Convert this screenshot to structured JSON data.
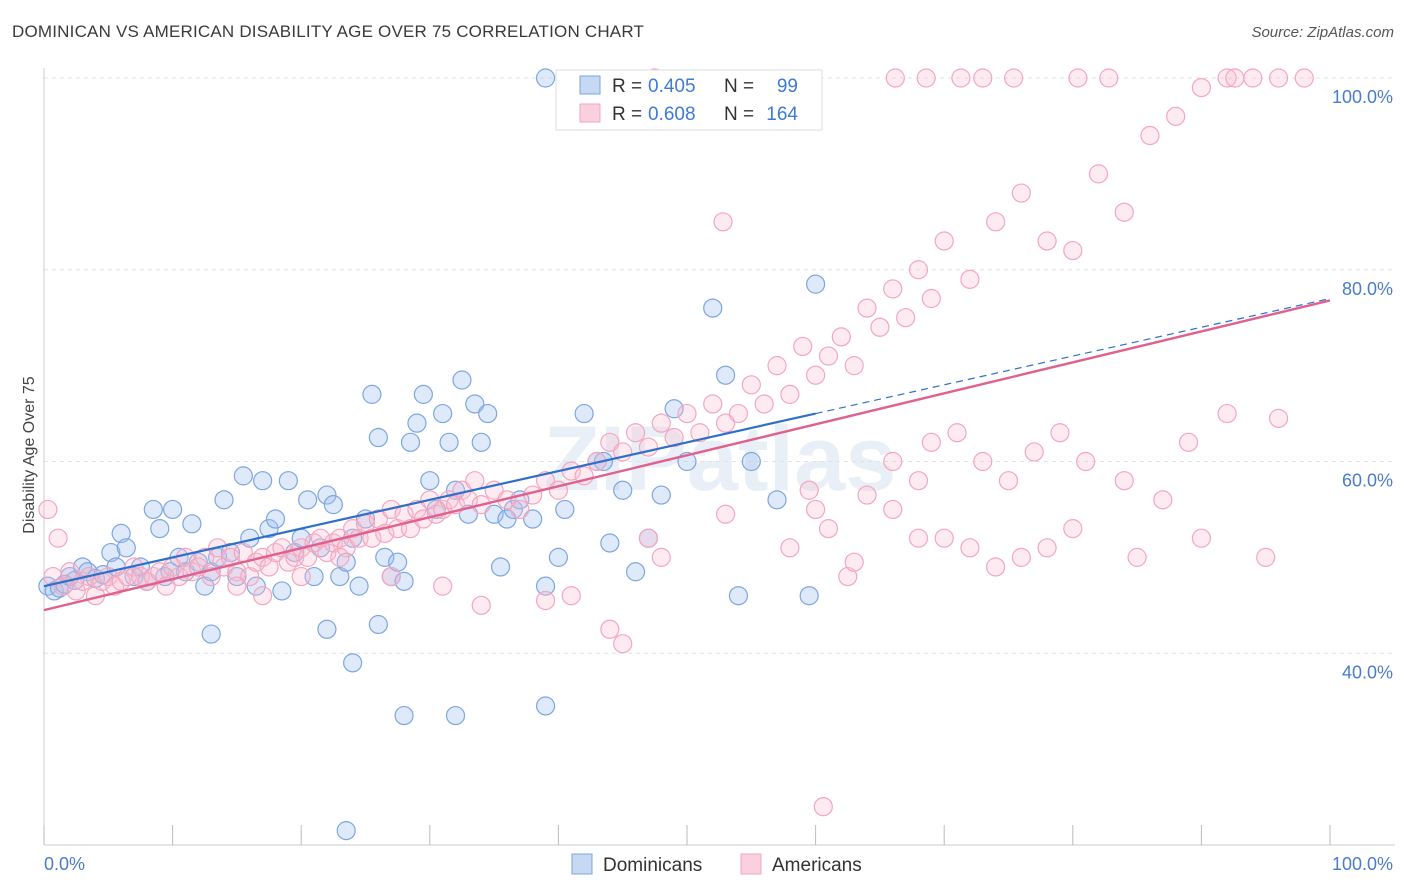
{
  "title": "DOMINICAN VS AMERICAN DISABILITY AGE OVER 75 CORRELATION CHART",
  "source": "Source: ZipAtlas.com",
  "watermark": "ZIPatlas",
  "chart_data": {
    "type": "scatter",
    "ylabel": "Disability Age Over 75",
    "xlim": [
      0,
      100
    ],
    "ylim": [
      20,
      100
    ],
    "x_tick_labels": [
      "0.0%",
      "100.0%"
    ],
    "y_ticks": [
      40,
      60,
      80,
      100
    ],
    "y_tick_labels": [
      "40.0%",
      "60.0%",
      "80.0%",
      "100.0%"
    ],
    "grid": true,
    "legend": {
      "position": "top-center",
      "r_label": "R =",
      "n_label": "N =",
      "entries": [
        {
          "r": "0.405",
          "n": "99"
        },
        {
          "r": "0.608",
          "n": "164"
        }
      ]
    },
    "series": [
      {
        "name": "Dominicans",
        "color": "#7ea6e0",
        "line_color": "#2f6fc9",
        "trend": {
          "x0": 0,
          "y0": 47,
          "x1": 60,
          "y1": 65,
          "dash_to_x": 100,
          "dash_to_y": 77
        },
        "points": [
          [
            0.3,
            47
          ],
          [
            0.8,
            46.5
          ],
          [
            1.2,
            46.8
          ],
          [
            1.6,
            47.2
          ],
          [
            2,
            48
          ],
          [
            2.4,
            47.6
          ],
          [
            3,
            49
          ],
          [
            3.4,
            48.5
          ],
          [
            4,
            47.8
          ],
          [
            4.6,
            48.2
          ],
          [
            5.2,
            50.5
          ],
          [
            5.6,
            49
          ],
          [
            6,
            52.5
          ],
          [
            6.4,
            51
          ],
          [
            7,
            48
          ],
          [
            7.5,
            49
          ],
          [
            8,
            47.5
          ],
          [
            8.5,
            55
          ],
          [
            9,
            53
          ],
          [
            9.4,
            48
          ],
          [
            9.8,
            48.5
          ],
          [
            10,
            55
          ],
          [
            10.5,
            50
          ],
          [
            11,
            48.5
          ],
          [
            11.5,
            53.5
          ],
          [
            12,
            49.5
          ],
          [
            12.5,
            47
          ],
          [
            13,
            48.5
          ],
          [
            13.5,
            50
          ],
          [
            14,
            56
          ],
          [
            14.5,
            50.5
          ],
          [
            15,
            48
          ],
          [
            15.5,
            58.5
          ],
          [
            16,
            52
          ],
          [
            16.5,
            47
          ],
          [
            17,
            58
          ],
          [
            17.5,
            53
          ],
          [
            18,
            54
          ],
          [
            18.5,
            46.5
          ],
          [
            19,
            58
          ],
          [
            19.5,
            50.5
          ],
          [
            20,
            52
          ],
          [
            20.5,
            56
          ],
          [
            21,
            48
          ],
          [
            21.5,
            51
          ],
          [
            22,
            56.5
          ],
          [
            22.5,
            55.5
          ],
          [
            23,
            48
          ],
          [
            23.5,
            49.5
          ],
          [
            24,
            52
          ],
          [
            24.5,
            47
          ],
          [
            25,
            54
          ],
          [
            25.5,
            67
          ],
          [
            26,
            62.5
          ],
          [
            26.5,
            50
          ],
          [
            27,
            48
          ],
          [
            27.5,
            49.5
          ],
          [
            28,
            47.5
          ],
          [
            28.5,
            62
          ],
          [
            29,
            64
          ],
          [
            29.5,
            67
          ],
          [
            30,
            58
          ],
          [
            30.5,
            55
          ],
          [
            31,
            65
          ],
          [
            31.5,
            62
          ],
          [
            32,
            57
          ],
          [
            32.5,
            68.5
          ],
          [
            33,
            54.5
          ],
          [
            33.5,
            66
          ],
          [
            34,
            62
          ],
          [
            34.5,
            65
          ],
          [
            35,
            54.5
          ],
          [
            35.5,
            49
          ],
          [
            36,
            54
          ],
          [
            36.5,
            55
          ],
          [
            37,
            56
          ],
          [
            38,
            54
          ],
          [
            39,
            47
          ],
          [
            40,
            50
          ],
          [
            40.5,
            55
          ],
          [
            42,
            65
          ],
          [
            43,
            60
          ],
          [
            43.5,
            60
          ],
          [
            44,
            51.5
          ],
          [
            45,
            57
          ],
          [
            46,
            48.5
          ],
          [
            47,
            52
          ],
          [
            48,
            56.5
          ],
          [
            49,
            65.5
          ],
          [
            50,
            60
          ],
          [
            52,
            76
          ],
          [
            53,
            69
          ],
          [
            54,
            46
          ],
          [
            55,
            60
          ],
          [
            57,
            56
          ],
          [
            59.5,
            46
          ],
          [
            60,
            78.5
          ],
          [
            13,
            42
          ],
          [
            22,
            42.5
          ],
          [
            24,
            39
          ],
          [
            26,
            43
          ],
          [
            28,
            33.5
          ],
          [
            32,
            33.5
          ],
          [
            39,
            34.5
          ],
          [
            23.5,
            21.5
          ],
          [
            39,
            100
          ]
        ]
      },
      {
        "name": "Americans",
        "color": "#f4a6bf",
        "line_color": "#e0608e",
        "trend": {
          "x0": 0,
          "y0": 44.5,
          "x1": 100,
          "y1": 76.8
        },
        "points": [
          [
            0.3,
            55
          ],
          [
            0.7,
            48
          ],
          [
            1.1,
            52
          ],
          [
            1.5,
            47
          ],
          [
            2,
            48.5
          ],
          [
            2.5,
            46.5
          ],
          [
            3,
            47.5
          ],
          [
            3.5,
            48
          ],
          [
            4,
            46
          ],
          [
            4.5,
            47.5
          ],
          [
            5,
            48
          ],
          [
            5.5,
            47
          ],
          [
            6,
            47.5
          ],
          [
            6.5,
            48
          ],
          [
            7,
            49
          ],
          [
            7.5,
            48
          ],
          [
            8,
            47.5
          ],
          [
            8.5,
            48
          ],
          [
            9,
            48.5
          ],
          [
            9.5,
            47
          ],
          [
            10,
            49
          ],
          [
            10.5,
            48
          ],
          [
            11,
            50
          ],
          [
            11.5,
            48.5
          ],
          [
            12,
            49
          ],
          [
            12.5,
            50
          ],
          [
            13,
            48
          ],
          [
            13.5,
            51
          ],
          [
            14,
            49
          ],
          [
            14.5,
            50
          ],
          [
            15,
            48.5
          ],
          [
            15.5,
            50.5
          ],
          [
            16,
            48
          ],
          [
            16.5,
            49.5
          ],
          [
            17,
            50
          ],
          [
            17.5,
            49
          ],
          [
            18,
            50.5
          ],
          [
            18.5,
            51
          ],
          [
            19,
            49.5
          ],
          [
            19.5,
            50
          ],
          [
            20,
            51
          ],
          [
            20.5,
            50
          ],
          [
            21,
            51.5
          ],
          [
            21.5,
            52
          ],
          [
            22,
            50.5
          ],
          [
            22.5,
            51.5
          ],
          [
            23,
            52
          ],
          [
            23.5,
            51
          ],
          [
            24,
            53
          ],
          [
            24.5,
            52
          ],
          [
            25,
            53.5
          ],
          [
            25.5,
            52
          ],
          [
            26,
            54
          ],
          [
            26.5,
            52.5
          ],
          [
            27,
            55
          ],
          [
            27.5,
            53
          ],
          [
            28,
            54.5
          ],
          [
            28.5,
            53
          ],
          [
            29,
            55
          ],
          [
            29.5,
            54
          ],
          [
            30,
            56
          ],
          [
            30.5,
            54.5
          ],
          [
            31,
            55
          ],
          [
            31.5,
            56
          ],
          [
            32,
            55.5
          ],
          [
            32.5,
            57
          ],
          [
            33,
            56
          ],
          [
            33.5,
            58
          ],
          [
            34,
            55.5
          ],
          [
            35,
            57
          ],
          [
            36,
            56
          ],
          [
            37,
            55
          ],
          [
            38,
            56.5
          ],
          [
            39,
            58
          ],
          [
            40,
            57
          ],
          [
            41,
            59
          ],
          [
            42,
            58.5
          ],
          [
            43,
            60
          ],
          [
            44,
            62
          ],
          [
            45,
            61
          ],
          [
            46,
            63
          ],
          [
            47,
            61.5
          ],
          [
            48,
            64
          ],
          [
            49,
            62.5
          ],
          [
            50,
            65
          ],
          [
            51,
            63
          ],
          [
            52,
            66
          ],
          [
            53,
            64
          ],
          [
            54,
            65
          ],
          [
            55,
            68
          ],
          [
            56,
            66
          ],
          [
            57,
            70
          ],
          [
            58,
            67
          ],
          [
            59,
            72
          ],
          [
            60,
            69
          ],
          [
            61,
            71
          ],
          [
            62,
            73
          ],
          [
            63,
            70
          ],
          [
            64,
            76
          ],
          [
            65,
            74
          ],
          [
            66,
            78
          ],
          [
            67,
            75
          ],
          [
            68,
            80
          ],
          [
            69,
            77
          ],
          [
            70,
            83
          ],
          [
            72,
            79
          ],
          [
            74,
            85
          ],
          [
            76,
            88
          ],
          [
            78,
            83
          ],
          [
            80,
            82
          ],
          [
            82,
            90
          ],
          [
            84,
            86
          ],
          [
            86,
            94
          ],
          [
            88,
            96
          ],
          [
            90,
            99
          ],
          [
            92,
            100
          ],
          [
            94,
            100
          ],
          [
            96,
            100
          ],
          [
            98,
            100
          ],
          [
            45,
            41
          ],
          [
            44,
            42.5
          ],
          [
            41,
            46
          ],
          [
            39,
            45.5
          ],
          [
            34,
            45
          ],
          [
            31,
            47
          ],
          [
            27,
            48
          ],
          [
            23,
            50
          ],
          [
            20,
            48
          ],
          [
            17,
            46
          ],
          [
            15,
            47
          ],
          [
            62.5,
            48
          ],
          [
            63,
            49.5
          ],
          [
            66,
            55
          ],
          [
            68,
            52
          ],
          [
            70,
            52
          ],
          [
            72,
            51
          ],
          [
            74,
            49
          ],
          [
            76,
            50
          ],
          [
            78,
            51
          ],
          [
            80,
            53
          ],
          [
            85,
            50
          ],
          [
            90,
            52
          ],
          [
            95,
            50
          ],
          [
            48,
            50
          ],
          [
            47,
            52
          ],
          [
            53,
            54.5
          ],
          [
            58,
            51
          ],
          [
            59.5,
            57
          ],
          [
            60,
            55
          ],
          [
            61,
            53
          ],
          [
            64,
            56.5
          ],
          [
            66,
            60
          ],
          [
            68,
            58
          ],
          [
            69,
            62
          ],
          [
            71,
            63
          ],
          [
            73,
            60
          ],
          [
            75,
            58
          ],
          [
            77,
            61
          ],
          [
            79,
            63
          ],
          [
            81,
            60
          ],
          [
            84,
            58
          ],
          [
            87,
            56
          ],
          [
            89,
            62
          ],
          [
            92,
            65
          ],
          [
            96,
            64.5
          ],
          [
            52.8,
            85
          ],
          [
            47.5,
            100
          ],
          [
            66.2,
            100
          ],
          [
            68.6,
            100
          ],
          [
            71.3,
            100
          ],
          [
            73,
            100
          ],
          [
            75.4,
            100
          ],
          [
            80.4,
            100
          ],
          [
            82.8,
            100
          ],
          [
            92.6,
            100
          ],
          [
            60.6,
            24
          ]
        ]
      }
    ]
  }
}
